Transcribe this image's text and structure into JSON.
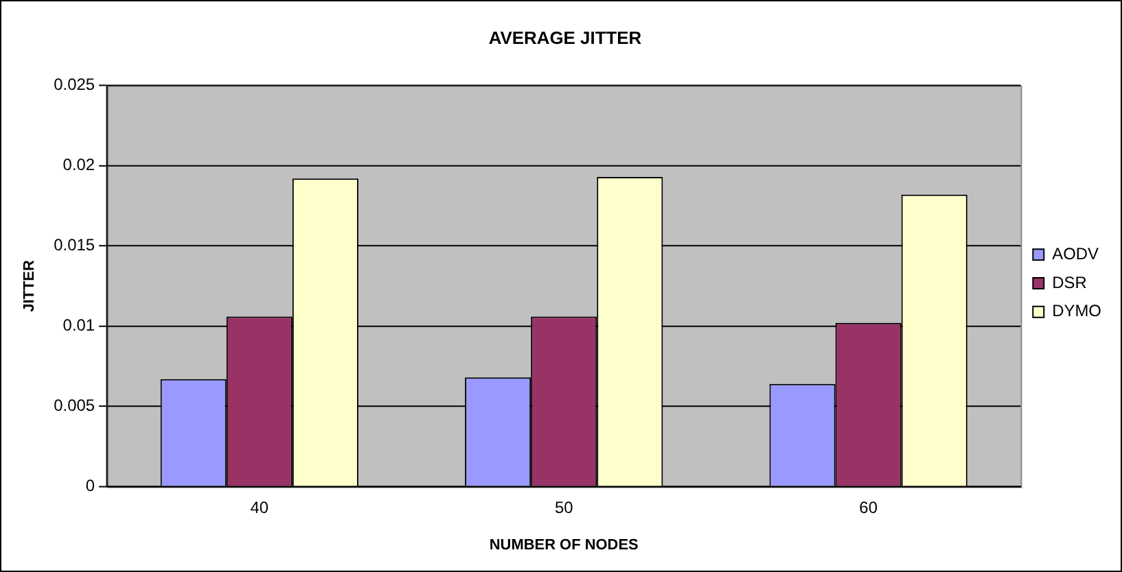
{
  "chart_data": {
    "type": "bar",
    "title": "AVERAGE JITTER",
    "xlabel": "NUMBER OF NODES",
    "ylabel": "JITTER",
    "categories": [
      "40",
      "50",
      "60"
    ],
    "series": [
      {
        "name": "AODV",
        "color": "#9999ff",
        "values": [
          0.0067,
          0.0068,
          0.0064
        ]
      },
      {
        "name": "DSR",
        "color": "#993366",
        "values": [
          0.0106,
          0.0106,
          0.0102
        ]
      },
      {
        "name": "DYMO",
        "color": "#ffffcc",
        "values": [
          0.0192,
          0.0193,
          0.0182
        ]
      }
    ],
    "ylim": [
      0,
      0.025
    ],
    "yticks": [
      0,
      0.005,
      0.01,
      0.015,
      0.02,
      0.025
    ],
    "grid": "y",
    "legend": "right"
  }
}
